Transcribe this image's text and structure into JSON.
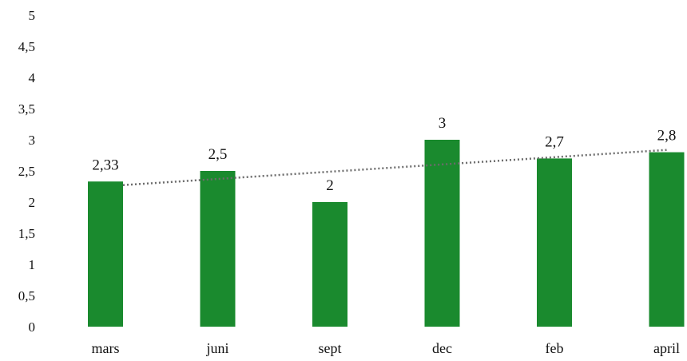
{
  "chart_data": {
    "type": "bar",
    "categories": [
      "mars",
      "juni",
      "sept",
      "dec",
      "feb",
      "april"
    ],
    "values": [
      2.33,
      2.5,
      2,
      3,
      2.7,
      2.8
    ],
    "data_labels": [
      "2,33",
      "2,5",
      "2",
      "3",
      "2,7",
      "2,8"
    ],
    "y_ticks": [
      0,
      0.5,
      1,
      1.5,
      2,
      2.5,
      3,
      3.5,
      4,
      4.5,
      5
    ],
    "y_tick_labels": [
      "0",
      "0,5",
      "1",
      "1,5",
      "2",
      "2,5",
      "3",
      "3,5",
      "4",
      "4,5",
      "5"
    ],
    "ylim": [
      0,
      5
    ],
    "trendline": {
      "type": "linear",
      "style": "dotted"
    },
    "grid": false,
    "legend": "none",
    "title": "",
    "xlabel": "",
    "ylabel": "",
    "colors": {
      "bar": "#1a8a2e",
      "trendline": "#6b6b6b"
    }
  }
}
